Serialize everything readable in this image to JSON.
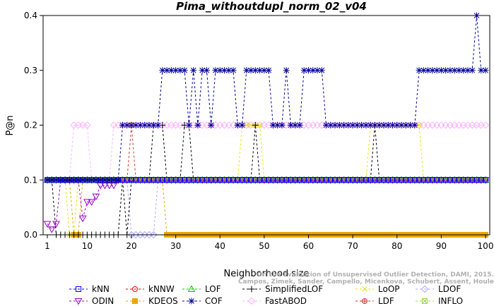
{
  "chart_data": {
    "type": "line",
    "title": "Pima_withoutdupl_norm_02_v04",
    "xlabel": "Neighborhood size",
    "ylabel": "P@n",
    "xlim": [
      1,
      100
    ],
    "ylim": [
      0,
      0.4
    ],
    "xticks": [
      1,
      10,
      20,
      30,
      40,
      50,
      60,
      70,
      80,
      90,
      100
    ],
    "yticks": [
      0.0,
      0.1,
      0.2,
      0.3,
      0.4
    ],
    "ytick_labels": [
      "0.0",
      "0.1",
      "0.2",
      "0.3",
      "0.4"
    ],
    "grid": false,
    "legend_position": "bottom",
    "watermark": "Campos, Zimek, Sander, Campello, Micenkova, Schubert, Assent, Houle",
    "watermark_line1": "On the Evaluation of Unsupervised Outlier Detection, DAMI, 2015.",
    "series": [
      {
        "name": "kNN",
        "color": "#0000ff",
        "marker": "square",
        "segments": [
          {
            "from": 1,
            "to": 100,
            "value": 0.1
          }
        ]
      },
      {
        "name": "kNNW",
        "color": "#ff0000",
        "marker": "circle",
        "segments": [
          {
            "from": 1,
            "to": 100,
            "value": 0.1
          }
        ]
      },
      {
        "name": "LOF",
        "color": "#00cc00",
        "marker": "triangle",
        "segments": [
          {
            "from": 1,
            "to": 100,
            "value": 0.1
          }
        ]
      },
      {
        "name": "SimplifiedLOF",
        "color": "#000000",
        "marker": "plus",
        "segments": [
          {
            "from": 1,
            "to": 2,
            "value": 0.1
          },
          {
            "from": 3,
            "to": 17,
            "value": 0.0
          },
          {
            "from": 18,
            "to": 18,
            "value": 0.1
          },
          {
            "from": 19,
            "to": 19,
            "value": 0.0
          },
          {
            "from": 20,
            "to": 24,
            "value": 0.1
          },
          {
            "from": 25,
            "to": 27,
            "value": 0.2
          },
          {
            "from": 28,
            "to": 31,
            "value": 0.1
          },
          {
            "from": 32,
            "to": 33,
            "value": 0.2
          },
          {
            "from": 34,
            "to": 47,
            "value": 0.1
          },
          {
            "from": 48,
            "to": 48,
            "value": 0.2
          },
          {
            "from": 49,
            "to": 74,
            "value": 0.1
          },
          {
            "from": 75,
            "to": 75,
            "value": 0.2
          },
          {
            "from": 76,
            "to": 100,
            "value": 0.1
          }
        ]
      },
      {
        "name": "LoOP",
        "color": "#e6e600",
        "marker": "x",
        "segments": [
          {
            "from": 1,
            "to": 5,
            "value": 0.1
          },
          {
            "from": 6,
            "to": 7,
            "value": 0.0
          },
          {
            "from": 8,
            "to": 27,
            "value": 0.1
          },
          {
            "from": 28,
            "to": 44,
            "value": 0.1
          },
          {
            "from": 45,
            "to": 49,
            "value": 0.2
          },
          {
            "from": 50,
            "to": 73,
            "value": 0.1
          },
          {
            "from": 74,
            "to": 85,
            "value": 0.2
          },
          {
            "from": 86,
            "to": 100,
            "value": 0.1
          }
        ]
      },
      {
        "name": "LDOF",
        "color": "#aaaaff",
        "marker": "diamond",
        "segments": [
          {
            "from": 1,
            "to": 19,
            "value": 0.1
          },
          {
            "from": 20,
            "to": 25,
            "value": 0.0
          },
          {
            "from": 26,
            "to": 100,
            "value": 0.1
          }
        ]
      },
      {
        "name": "ODIN",
        "color": "#9900cc",
        "marker": "triangle-down",
        "segments": [
          {
            "from": 1,
            "to": 1,
            "value": 0.02
          },
          {
            "from": 2,
            "to": 2,
            "value": 0.01
          },
          {
            "from": 3,
            "to": 3,
            "value": 0.02
          },
          {
            "from": 4,
            "to": 8,
            "value": 0.1
          },
          {
            "from": 9,
            "to": 9,
            "value": 0.03
          },
          {
            "from": 10,
            "to": 10,
            "value": 0.06
          },
          {
            "from": 11,
            "to": 11,
            "value": 0.06
          },
          {
            "from": 12,
            "to": 12,
            "value": 0.07
          },
          {
            "from": 13,
            "to": 16,
            "value": 0.09
          },
          {
            "from": 17,
            "to": 100,
            "value": 0.1
          }
        ]
      },
      {
        "name": "KDEOS",
        "color": "#e6a800",
        "marker": "square-filled",
        "segments": [
          {
            "from": 1,
            "to": 6,
            "value": 0.1
          },
          {
            "from": 7,
            "to": 8,
            "value": 0.0
          },
          {
            "from": 9,
            "to": 27,
            "value": 0.1
          },
          {
            "from": 28,
            "to": 100,
            "value": 0.0
          }
        ]
      },
      {
        "name": "COF",
        "color": "#000099",
        "marker": "star",
        "segments": [
          {
            "from": 1,
            "to": 17,
            "value": 0.1
          },
          {
            "from": 18,
            "to": 26,
            "value": 0.2
          },
          {
            "from": 27,
            "to": 32,
            "value": 0.3
          },
          {
            "from": 33,
            "to": 33,
            "value": 0.2
          },
          {
            "from": 34,
            "to": 34,
            "value": 0.3
          },
          {
            "from": 35,
            "to": 35,
            "value": 0.2
          },
          {
            "from": 36,
            "to": 37,
            "value": 0.3
          },
          {
            "from": 38,
            "to": 38,
            "value": 0.2
          },
          {
            "from": 39,
            "to": 43,
            "value": 0.3
          },
          {
            "from": 44,
            "to": 45,
            "value": 0.2
          },
          {
            "from": 46,
            "to": 51,
            "value": 0.3
          },
          {
            "from": 52,
            "to": 54,
            "value": 0.2
          },
          {
            "from": 55,
            "to": 55,
            "value": 0.3
          },
          {
            "from": 56,
            "to": 58,
            "value": 0.2
          },
          {
            "from": 59,
            "to": 63,
            "value": 0.3
          },
          {
            "from": 64,
            "to": 84,
            "value": 0.2
          },
          {
            "from": 85,
            "to": 97,
            "value": 0.3
          },
          {
            "from": 98,
            "to": 98,
            "value": 0.4
          },
          {
            "from": 99,
            "to": 100,
            "value": 0.3
          }
        ]
      },
      {
        "name": "FastABOD",
        "color": "#ffb3ff",
        "marker": "diamond",
        "segments": [
          {
            "from": 1,
            "to": 6,
            "value": 0.1
          },
          {
            "from": 7,
            "to": 10,
            "value": 0.2
          },
          {
            "from": 11,
            "to": 15,
            "value": 0.1
          },
          {
            "from": 16,
            "to": 100,
            "value": 0.2
          }
        ]
      },
      {
        "name": "LDF",
        "color": "#cc3333",
        "marker": "circle-plus",
        "segments": [
          {
            "from": 1,
            "to": 19,
            "value": 0.1
          },
          {
            "from": 20,
            "to": 20,
            "value": 0.2
          },
          {
            "from": 21,
            "to": 100,
            "value": 0.1
          }
        ]
      },
      {
        "name": "INFLO",
        "color": "#99dd44",
        "marker": "square-x",
        "segments": [
          {
            "from": 1,
            "to": 100,
            "value": 0.1
          }
        ]
      }
    ],
    "legend_rows": [
      [
        "kNN",
        "kNNW",
        "LOF",
        "SimplifiedLOF",
        "LoOP",
        "LDOF"
      ],
      [
        "ODIN",
        "KDEOS",
        "COF",
        "FastABOD",
        "LDF",
        "INFLO"
      ]
    ]
  }
}
